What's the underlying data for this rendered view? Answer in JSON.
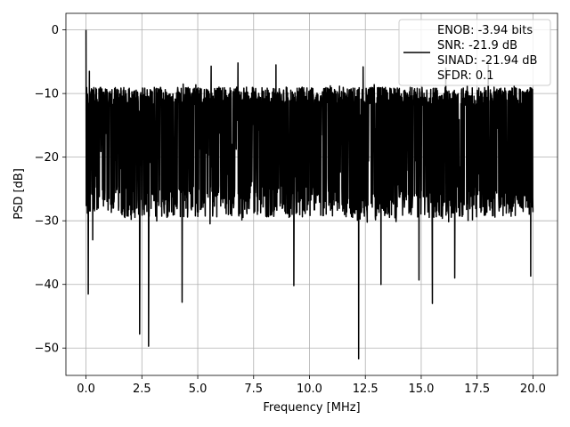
{
  "chart_data": {
    "type": "line",
    "title": "",
    "xlabel": "Frequency [MHz]",
    "ylabel": "PSD [dB]",
    "xlim": [
      -0.9,
      21.1
    ],
    "ylim": [
      -54.3,
      2.6
    ],
    "x_ticks": [
      0.0,
      2.5,
      5.0,
      7.5,
      10.0,
      12.5,
      15.0,
      17.5,
      20.0
    ],
    "x_tick_labels": [
      "0.0",
      "2.5",
      "5.0",
      "7.5",
      "10.0",
      "12.5",
      "15.0",
      "17.5",
      "20.0"
    ],
    "y_ticks": [
      0,
      -10,
      -20,
      -30,
      -40,
      -50
    ],
    "y_tick_labels": [
      "0",
      "−10",
      "−20",
      "−30",
      "−40",
      "−50"
    ],
    "grid": true,
    "line_color": "#000000",
    "grid_color": "#b0b0b0",
    "legend": {
      "placement": "top-right",
      "entries": [
        "ENOB: -3.94 bits",
        "SNR: -21.9 dB",
        "SINAD: -21.94 dB",
        "SFDR: 0.1"
      ]
    },
    "series": [
      {
        "x_range": [
          0.0,
          20.0
        ],
        "num_points": 2048,
        "noise_floor_mean_db": -19.5,
        "band_upper_db": -10.5,
        "band_lower_db": -27,
        "x": [
          0.0,
          0.05,
          0.1,
          0.15,
          0.2,
          0.3,
          2.4,
          2.8,
          4.3,
          5.6,
          6.8,
          8.5,
          9.3,
          12.2,
          12.4,
          13.2,
          14.9,
          15.5,
          16.1,
          16.5,
          18.0,
          19.9
        ],
        "values": [
          0.0,
          -25.5,
          -41.5,
          -6.5,
          -13.0,
          -33.0,
          -47.8,
          -49.7,
          -42.8,
          -5.7,
          -5.2,
          -5.5,
          -40.2,
          -51.7,
          -5.8,
          -40.0,
          -39.3,
          -43.0,
          -6.0,
          -39.0,
          -5.5,
          -38.7
        ]
      }
    ]
  }
}
